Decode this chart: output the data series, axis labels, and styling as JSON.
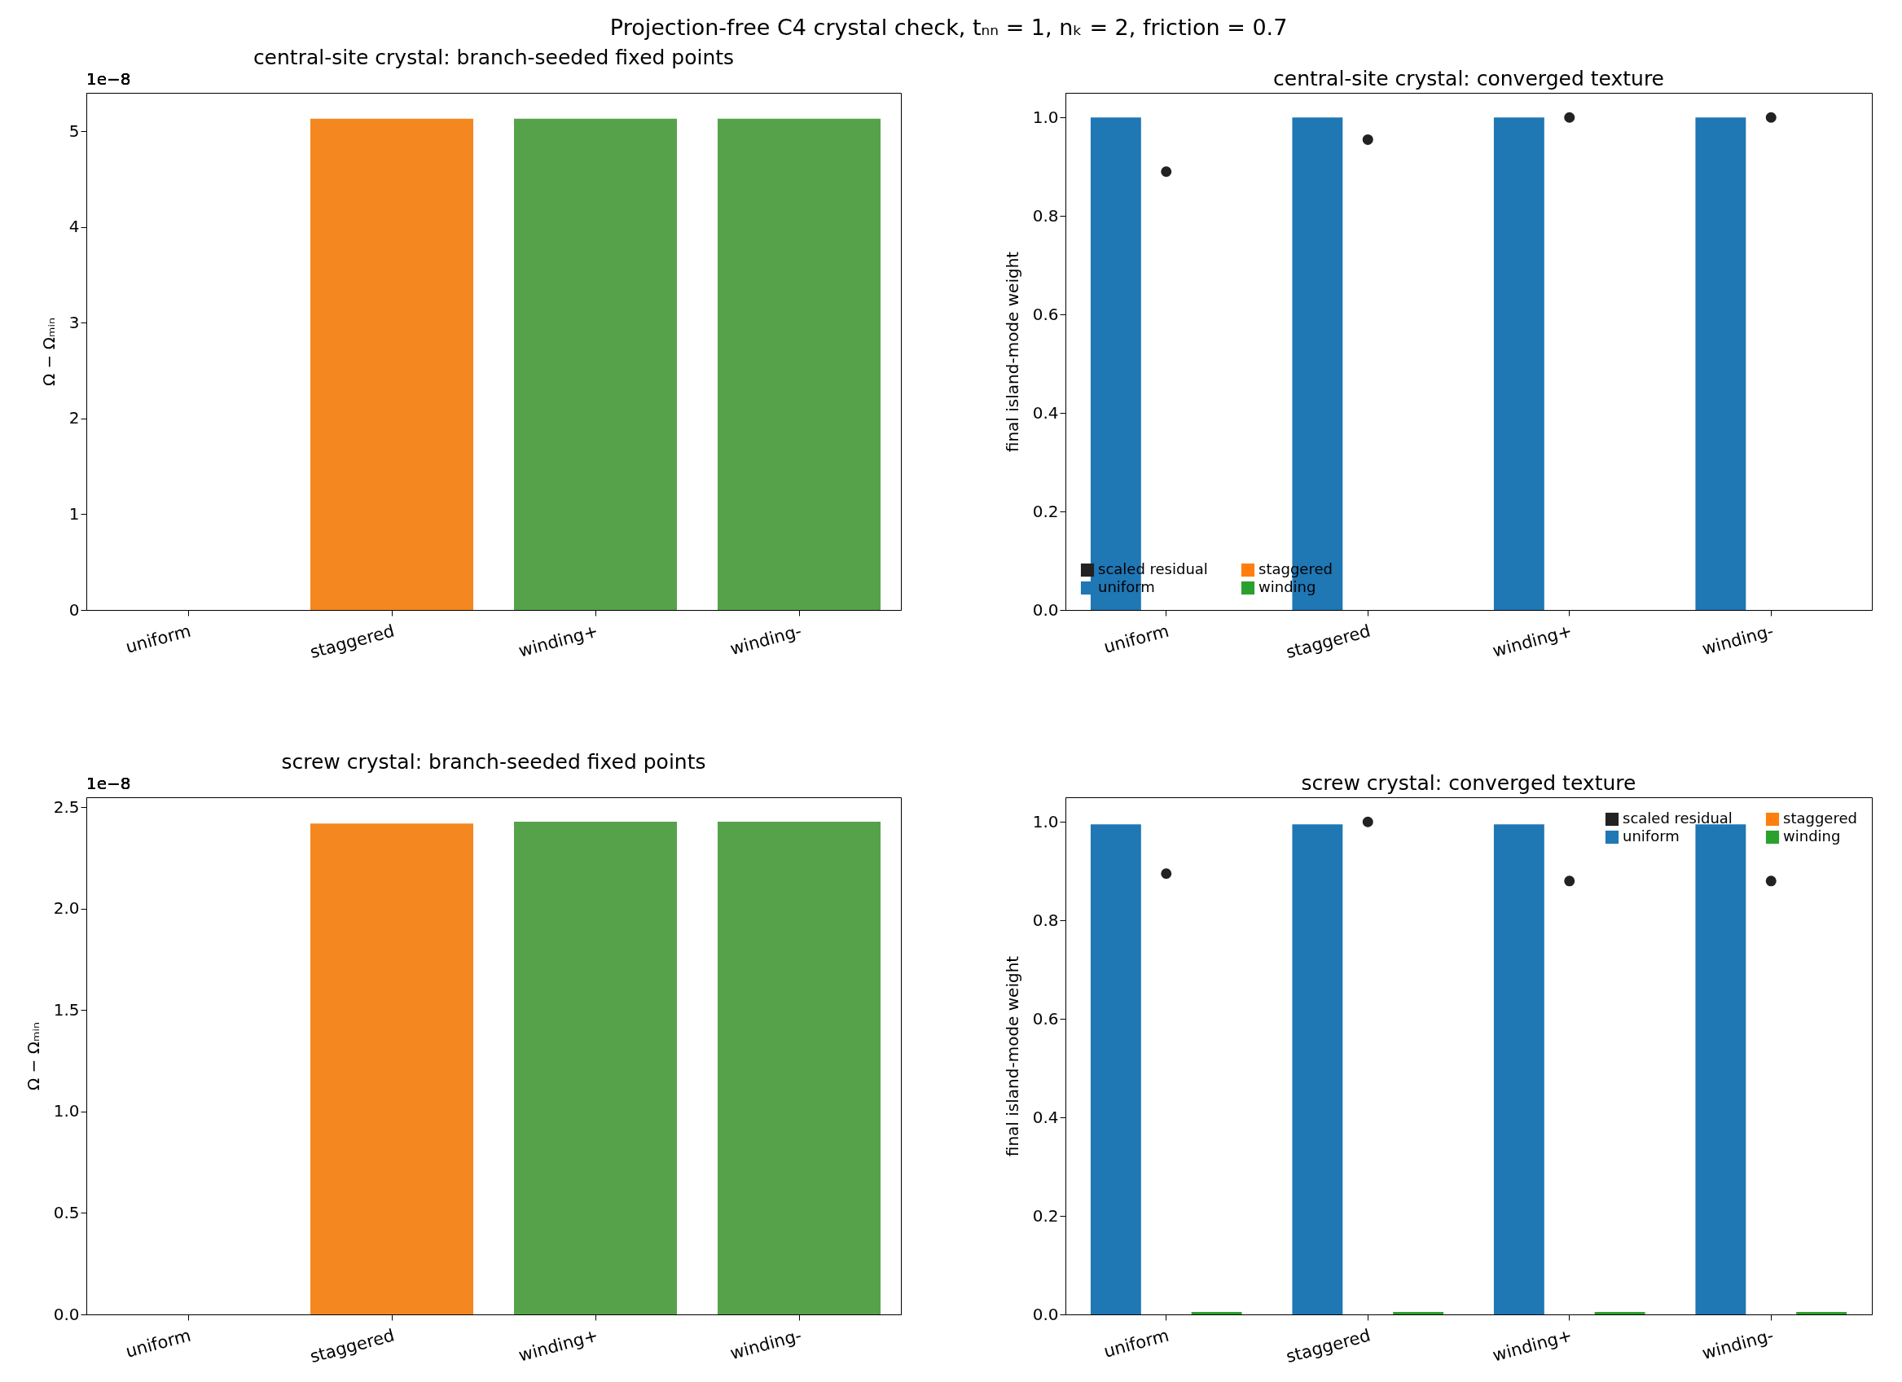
{
  "chart_data": [
    {
      "type": "other",
      "title": "Projection-free C4 crystal check, tₙₙ = 1, nₖ = 2, friction  = 0.7"
    },
    {
      "type": "bar",
      "title": "central-site crystal: branch-seeded fixed points",
      "ylabel": "Ω − Ωₘᵢₙ",
      "categories": [
        "uniform",
        "staggered",
        "winding+",
        "winding-"
      ],
      "values": [
        0,
        5.13,
        5.13,
        5.13
      ],
      "colors": [
        "#2a7ab9",
        "#f58720",
        "#56a24b",
        "#56a24b"
      ],
      "ylim": [
        0,
        5.4
      ],
      "yticks": [
        0,
        1,
        2,
        3,
        4,
        5
      ],
      "annotations": [
        "1e−8"
      ]
    },
    {
      "type": "bar",
      "title": "central-site crystal: converged texture",
      "ylabel": "final island-mode weight",
      "categories": [
        "uniform",
        "staggered",
        "winding+",
        "winding-"
      ],
      "series": [
        {
          "name": "scaled residual",
          "type": "scatter",
          "color": "#222222",
          "values": [
            0.89,
            0.955,
            1.0,
            1.0
          ]
        },
        {
          "name": "uniform",
          "color": "#1f77b4",
          "values": [
            1.0,
            1.0,
            1.0,
            1.0
          ]
        },
        {
          "name": "staggered",
          "color": "#ff7f0e",
          "values": [
            0,
            0,
            0,
            0
          ]
        },
        {
          "name": "winding",
          "color": "#2ca02c",
          "values": [
            0,
            0,
            0,
            0
          ]
        }
      ],
      "ylim": [
        0,
        1.05
      ],
      "yticks": [
        {
          "value": 0,
          "label": "0.0"
        },
        0.2,
        0.4,
        0.6,
        0.8,
        {
          "value": 1,
          "label": "1.0"
        }
      ],
      "legend": "bottom left"
    },
    {
      "type": "bar",
      "title": "screw crystal: branch-seeded fixed points",
      "ylabel": "Ω − Ωₘᵢₙ",
      "categories": [
        "uniform",
        "staggered",
        "winding+",
        "winding-"
      ],
      "values": [
        0,
        2.42,
        2.43,
        2.43
      ],
      "colors": [
        "#2a7ab9",
        "#f58720",
        "#56a24b",
        "#56a24b"
      ],
      "ylim": [
        0,
        2.55
      ],
      "yticks": [
        {
          "value": 0,
          "label": "0.0"
        },
        0.5,
        {
          "value": 1,
          "label": "1.0"
        },
        1.5,
        {
          "value": 2,
          "label": "2.0"
        },
        2.5
      ],
      "annotations": [
        "1e−8"
      ]
    },
    {
      "type": "bar",
      "title": "screw crystal: converged texture",
      "ylabel": "final island-mode weight",
      "categories": [
        "uniform",
        "staggered",
        "winding+",
        "winding-"
      ],
      "series": [
        {
          "name": "scaled residual",
          "type": "scatter",
          "color": "#222222",
          "values": [
            0.895,
            1.0,
            0.88,
            0.88
          ]
        },
        {
          "name": "uniform",
          "color": "#1f77b4",
          "values": [
            0.995,
            0.995,
            0.995,
            0.995
          ]
        },
        {
          "name": "staggered",
          "color": "#ff7f0e",
          "values": [
            0,
            0,
            0,
            0
          ]
        },
        {
          "name": "winding",
          "color": "#2ca02c",
          "values": [
            0.005,
            0.005,
            0.005,
            0.005
          ]
        }
      ],
      "ylim": [
        0,
        1.05
      ],
      "yticks": [
        {
          "value": 0,
          "label": "0.0"
        },
        0.2,
        0.4,
        0.6,
        0.8,
        {
          "value": 1,
          "label": "1.0"
        }
      ],
      "legend": "top right"
    }
  ]
}
